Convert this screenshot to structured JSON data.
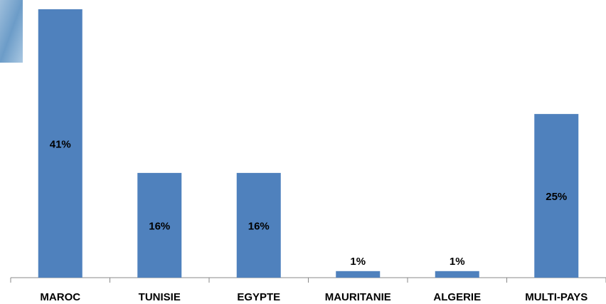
{
  "chart_data": {
    "type": "bar",
    "categories": [
      "MAROC",
      "TUNISIE",
      "EGYPTE",
      "MAURITANIE",
      "ALGERIE",
      "MULTI-PAYS"
    ],
    "values": [
      41,
      16,
      16,
      1,
      1,
      25
    ],
    "value_labels": [
      "41%",
      "16%",
      "16%",
      "1%",
      "1%",
      "25%"
    ],
    "color": "#4f81bd"
  }
}
